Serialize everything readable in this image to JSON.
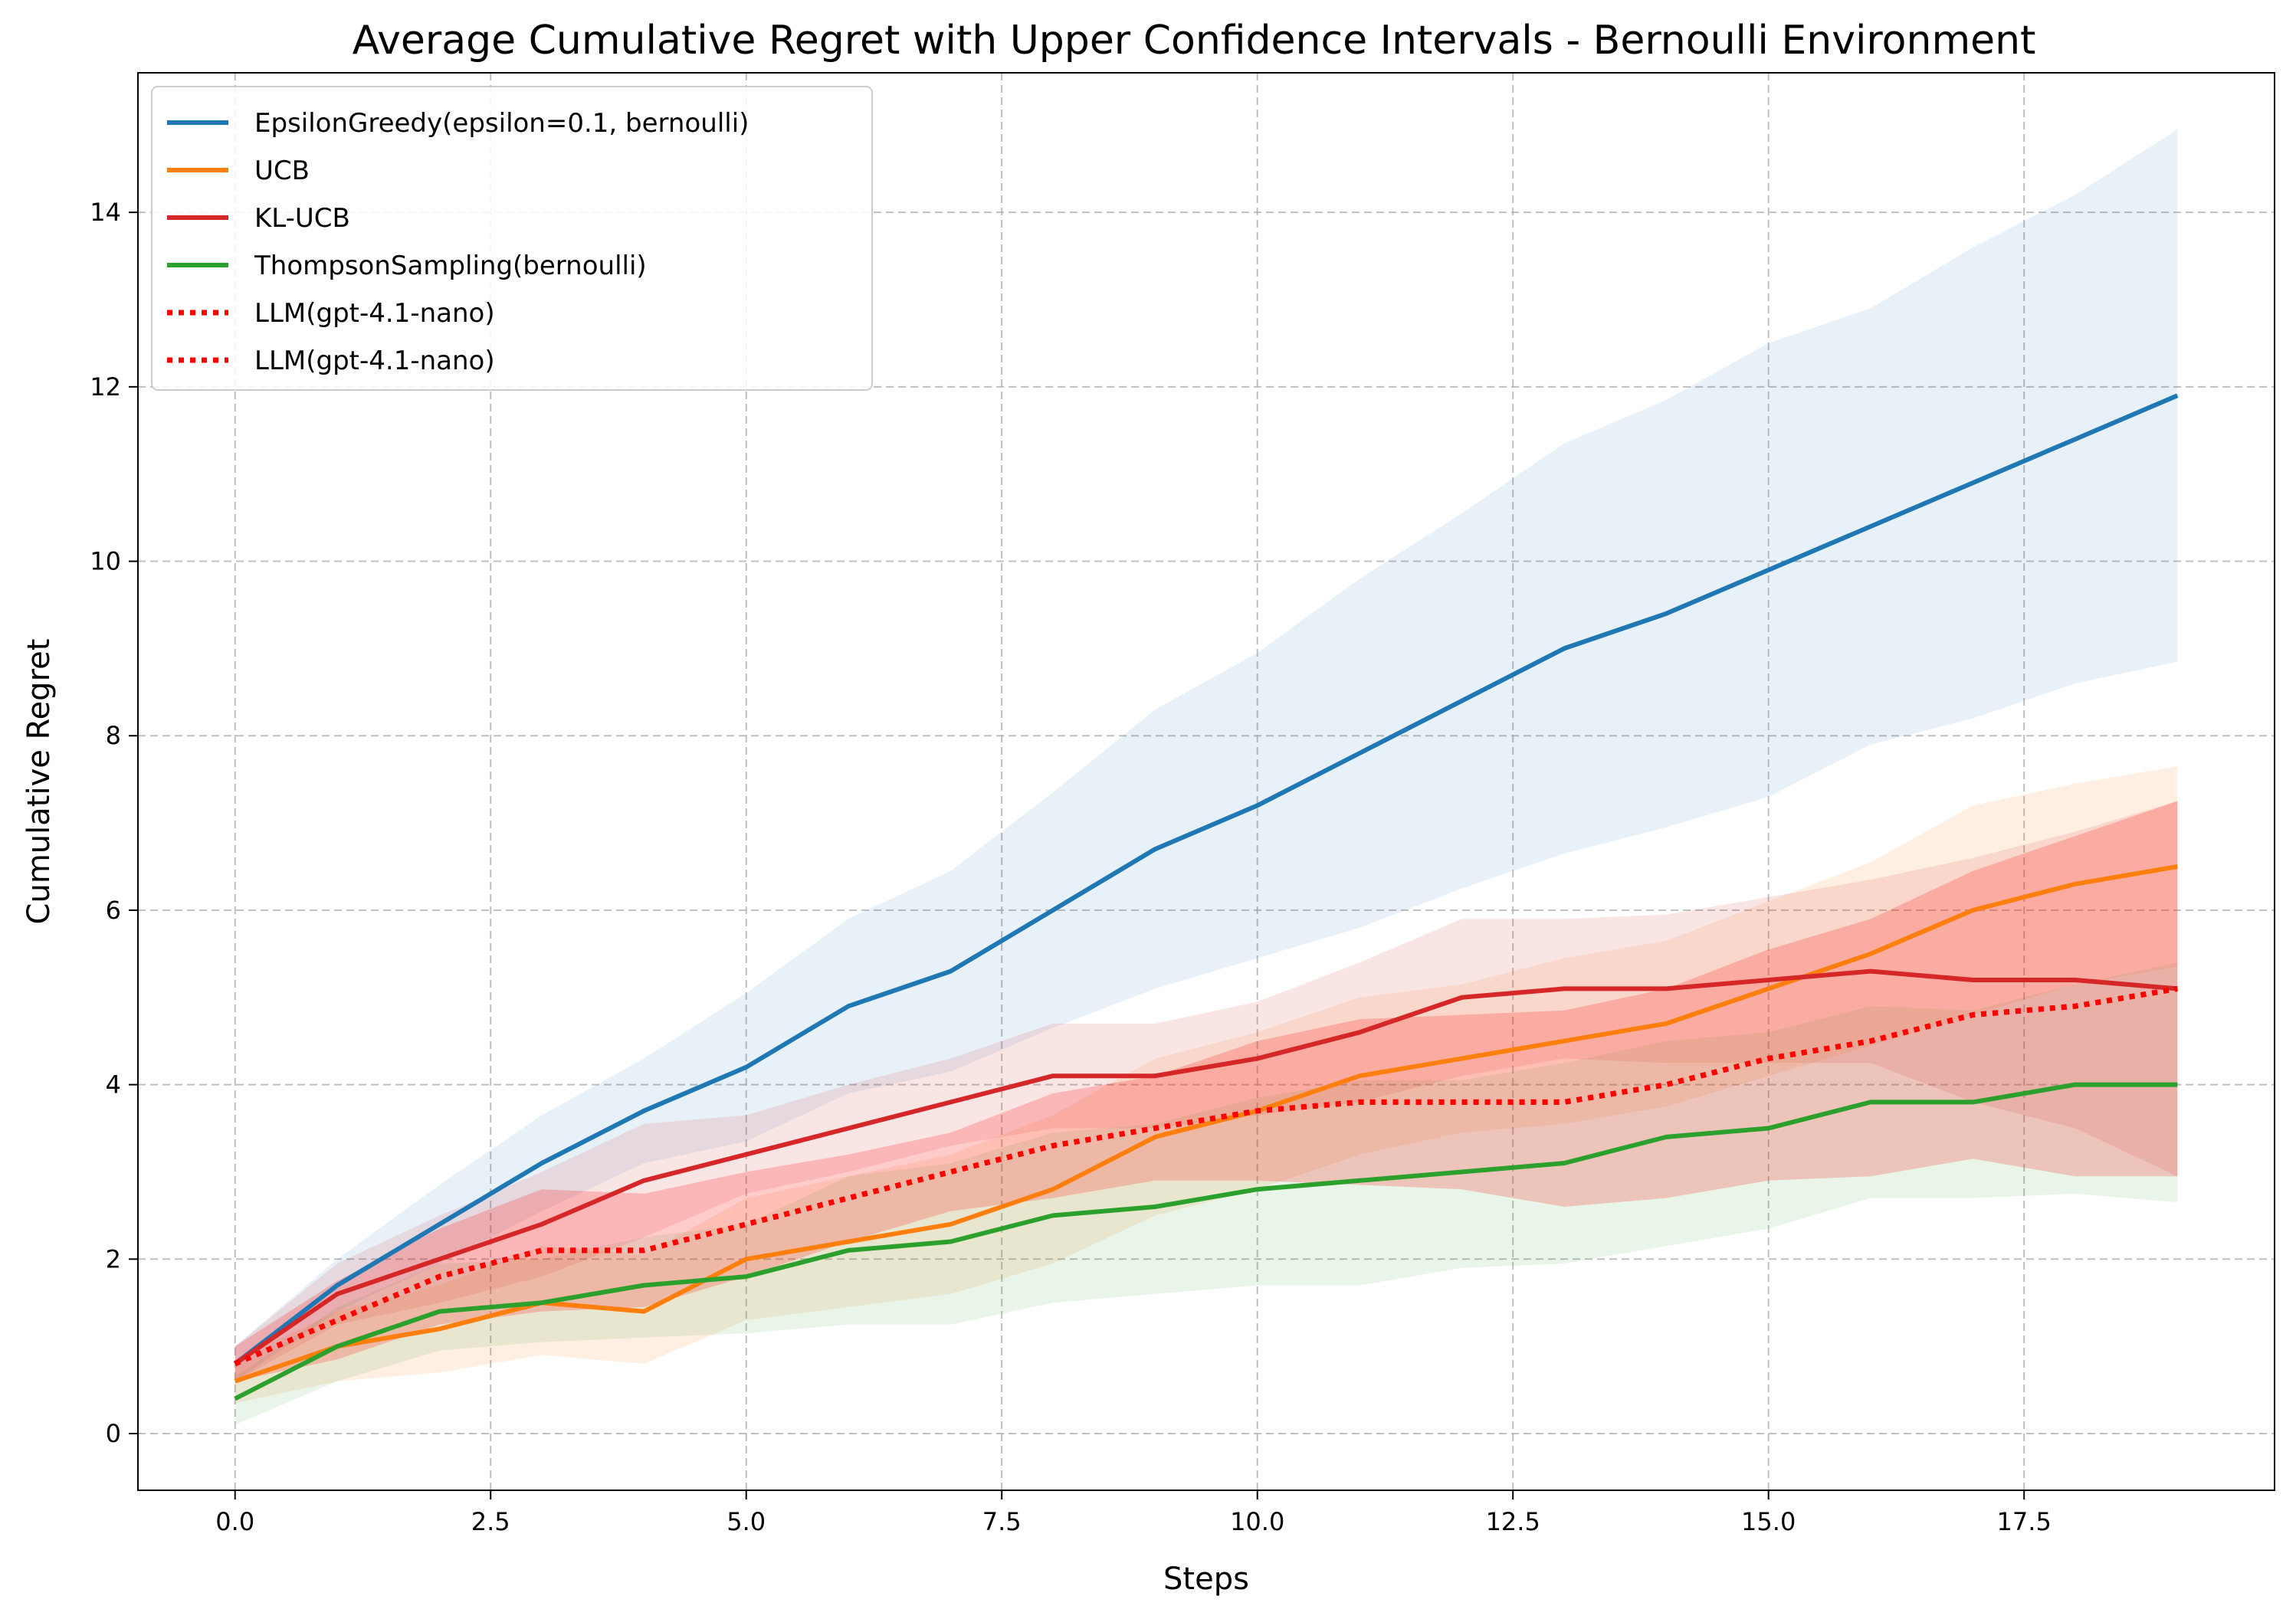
{
  "chart_data": {
    "type": "line",
    "title": "Average Cumulative Regret with Upper Confidence Intervals - Bernoulli Environment",
    "xlabel": "Steps",
    "ylabel": "Cumulative Regret",
    "xlim": [
      -0.95,
      19.95
    ],
    "ylim": [
      -0.65,
      15.6
    ],
    "xticks": [
      0.0,
      2.5,
      5.0,
      7.5,
      10.0,
      12.5,
      15.0,
      17.5
    ],
    "xtick_labels": [
      "0.0",
      "2.5",
      "5.0",
      "7.5",
      "10.0",
      "12.5",
      "15.0",
      "17.5"
    ],
    "yticks": [
      0,
      2,
      4,
      6,
      8,
      10,
      12,
      14
    ],
    "ytick_labels": [
      "0",
      "2",
      "4",
      "6",
      "8",
      "10",
      "12",
      "14"
    ],
    "grid": true,
    "legend_position": "top-left",
    "x": [
      0,
      1,
      2,
      3,
      4,
      5,
      6,
      7,
      8,
      9,
      10,
      11,
      12,
      13,
      14,
      15,
      16,
      17,
      18,
      19
    ],
    "series": [
      {
        "name": "EpsilonGreedy(epsilon=0.1, bernoulli)",
        "color": "#1f77b4",
        "style": "solid",
        "band_opacity": 0.1,
        "values": [
          0.8,
          1.7,
          2.4,
          3.1,
          3.7,
          4.2,
          4.9,
          5.3,
          6.0,
          6.7,
          7.2,
          7.8,
          8.4,
          9.0,
          9.4,
          9.9,
          10.4,
          10.9,
          11.4,
          11.9
        ],
        "upper": [
          1.0,
          2.0,
          2.85,
          3.65,
          4.3,
          5.05,
          5.9,
          6.45,
          7.35,
          8.3,
          8.95,
          9.8,
          10.55,
          11.35,
          11.85,
          12.5,
          12.9,
          13.6,
          14.2,
          14.95
        ],
        "lower": [
          0.6,
          1.4,
          1.95,
          2.55,
          3.1,
          3.35,
          3.9,
          4.15,
          4.65,
          5.1,
          5.45,
          5.8,
          6.25,
          6.65,
          6.95,
          7.3,
          7.9,
          8.2,
          8.6,
          8.85
        ]
      },
      {
        "name": "UCB",
        "color": "#ff7f0e",
        "style": "solid",
        "band_opacity": 0.12,
        "values": [
          0.6,
          1.0,
          1.2,
          1.5,
          1.4,
          2.0,
          2.2,
          2.4,
          2.8,
          3.4,
          3.7,
          4.1,
          4.3,
          4.5,
          4.7,
          5.1,
          5.5,
          6.0,
          6.3,
          6.5
        ],
        "upper": [
          0.85,
          1.4,
          1.7,
          2.15,
          2.05,
          2.7,
          2.95,
          3.2,
          3.65,
          4.3,
          4.6,
          5.0,
          5.15,
          5.45,
          5.65,
          6.1,
          6.55,
          7.2,
          7.45,
          7.65
        ],
        "lower": [
          0.35,
          0.6,
          0.7,
          0.9,
          0.8,
          1.3,
          1.45,
          1.6,
          1.95,
          2.5,
          2.8,
          3.2,
          3.45,
          3.55,
          3.75,
          4.1,
          4.45,
          4.8,
          5.15,
          5.35
        ]
      },
      {
        "name": "KL-UCB",
        "color": "#d62728",
        "style": "solid",
        "band_opacity": 0.12,
        "values": [
          0.8,
          1.6,
          2.0,
          2.4,
          2.9,
          3.2,
          3.5,
          3.8,
          4.1,
          4.1,
          4.3,
          4.6,
          5.0,
          5.1,
          5.1,
          5.2,
          5.3,
          5.2,
          5.2,
          5.1
        ],
        "upper": [
          1.0,
          1.95,
          2.5,
          3.0,
          3.55,
          3.65,
          4.0,
          4.3,
          4.7,
          4.7,
          4.95,
          5.4,
          5.9,
          5.9,
          5.95,
          6.15,
          6.35,
          6.6,
          6.9,
          7.25
        ],
        "lower": [
          0.6,
          1.25,
          1.5,
          1.8,
          2.25,
          2.75,
          3.0,
          3.3,
          3.5,
          3.5,
          3.65,
          3.8,
          4.1,
          4.3,
          4.25,
          4.25,
          4.25,
          3.8,
          3.5,
          2.95
        ]
      },
      {
        "name": "ThompsonSampling(bernoulli)",
        "color": "#2ca02c",
        "style": "solid",
        "band_opacity": 0.1,
        "values": [
          0.4,
          1.0,
          1.4,
          1.5,
          1.7,
          1.8,
          2.1,
          2.2,
          2.5,
          2.6,
          2.8,
          2.9,
          3.0,
          3.1,
          3.4,
          3.5,
          3.8,
          3.8,
          4.0,
          4.0
        ],
        "upper": [
          0.65,
          1.45,
          1.95,
          2.0,
          2.25,
          2.4,
          2.95,
          3.1,
          3.45,
          3.55,
          3.85,
          4.05,
          4.05,
          4.25,
          4.5,
          4.6,
          4.9,
          4.85,
          5.15,
          5.4
        ],
        "lower": [
          0.1,
          0.6,
          0.95,
          1.05,
          1.1,
          1.15,
          1.25,
          1.25,
          1.5,
          1.6,
          1.7,
          1.7,
          1.9,
          1.95,
          2.15,
          2.35,
          2.7,
          2.7,
          2.75,
          2.65
        ]
      },
      {
        "name": "LLM(gpt-4.1-nano)",
        "color": "#ff0000",
        "style": "dotted",
        "band_opacity": 0.2,
        "values": [
          0.8,
          1.3,
          1.8,
          2.1,
          2.1,
          2.4,
          2.7,
          3.0,
          3.3,
          3.5,
          3.7,
          3.8,
          3.8,
          3.8,
          4.0,
          4.3,
          4.5,
          4.8,
          4.9,
          5.1
        ],
        "upper": [
          1.0,
          1.75,
          2.35,
          2.8,
          2.75,
          3.0,
          3.2,
          3.45,
          3.9,
          4.1,
          4.5,
          4.75,
          4.8,
          4.85,
          5.1,
          5.55,
          5.9,
          6.45,
          6.85,
          7.25
        ],
        "lower": [
          0.6,
          0.85,
          1.25,
          1.4,
          1.45,
          1.8,
          2.2,
          2.55,
          2.7,
          2.9,
          2.9,
          2.85,
          2.8,
          2.6,
          2.7,
          2.9,
          2.95,
          3.15,
          2.95,
          2.95
        ]
      },
      {
        "name": "LLM(gpt-4.1-nano)",
        "color": "#ff0000",
        "style": "dotted",
        "band_opacity": 0.0,
        "values": [
          0.8,
          1.3,
          1.8,
          2.1,
          2.1,
          2.4,
          2.7,
          3.0,
          3.3,
          3.5,
          3.7,
          3.8,
          3.8,
          3.8,
          4.0,
          4.3,
          4.5,
          4.8,
          4.9,
          5.1
        ],
        "upper": [
          0.8,
          1.3,
          1.8,
          2.1,
          2.1,
          2.4,
          2.7,
          3.0,
          3.3,
          3.5,
          3.7,
          3.8,
          3.8,
          3.8,
          4.0,
          4.3,
          4.5,
          4.8,
          4.9,
          5.1
        ],
        "lower": [
          0.8,
          1.3,
          1.8,
          2.1,
          2.1,
          2.4,
          2.7,
          3.0,
          3.3,
          3.5,
          3.7,
          3.8,
          3.8,
          3.8,
          4.0,
          4.3,
          4.5,
          4.8,
          4.9,
          5.1
        ]
      }
    ]
  }
}
